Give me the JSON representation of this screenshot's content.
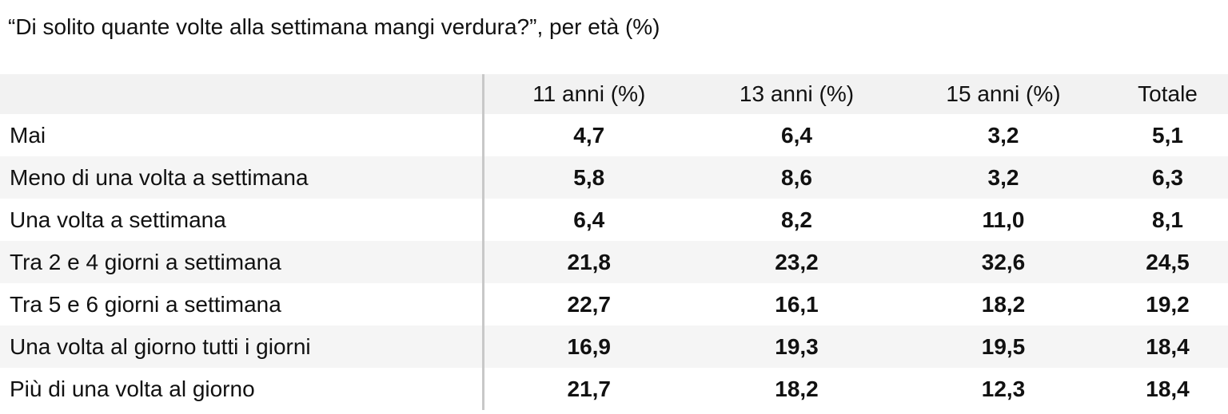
{
  "title": "“Di solito quante volte alla settimana mangi verdura?”, per età (%)",
  "table": {
    "columns": [
      "11 anni (%)",
      "13 anni (%)",
      "15 anni (%)",
      "Totale"
    ],
    "rows": [
      [
        "Mai",
        "4,7",
        "6,4",
        "3,2",
        "5,1"
      ],
      [
        "Meno di una volta a settimana",
        "5,8",
        "8,6",
        "3,2",
        "6,3"
      ],
      [
        "Una volta a settimana",
        "6,4",
        "8,2",
        "11,0",
        "8,1"
      ],
      [
        "Tra 2 e 4 giorni a settimana",
        "21,8",
        "23,2",
        "32,6",
        "24,5"
      ],
      [
        "Tra 5 e 6 giorni a settimana",
        "22,7",
        "16,1",
        "18,2",
        "19,2"
      ],
      [
        "Una volta al giorno tutti i giorni",
        "16,9",
        "19,3",
        "19,5",
        "18,4"
      ],
      [
        "Più di una volta al giorno",
        "21,7",
        "18,2",
        "12,3",
        "18,4"
      ]
    ]
  }
}
